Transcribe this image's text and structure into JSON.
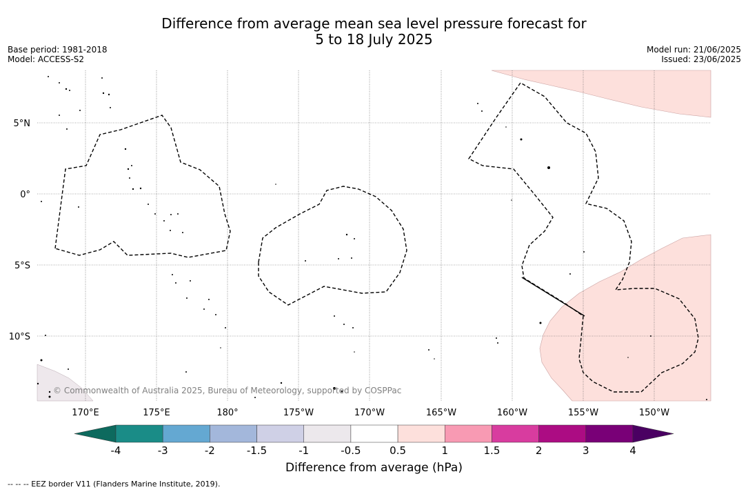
{
  "title": {
    "line1": "Difference from average mean sea level pressure forecast for",
    "line2": "5 to 18 July 2025"
  },
  "meta_left": {
    "base_period": "Base period: 1981-2018",
    "model": "Model: ACCESS-S2"
  },
  "meta_right": {
    "model_run": "Model run: 21/06/2025",
    "issued": "Issued: 23/06/2025"
  },
  "map": {
    "lon_labels": [
      "170°E",
      "175°E",
      "180°",
      "175°W",
      "170°W",
      "165°W",
      "160°W",
      "155°W",
      "150°W"
    ],
    "lat_labels": [
      "5°N",
      "0°",
      "5°S",
      "10°S"
    ],
    "copyright": "© Commonwealth of Australia 2025, Bureau of Meteorology, supported by COSPPac",
    "grid": true
  },
  "colorbar": {
    "label": "Difference from average (hPa)",
    "ticks": [
      "-4",
      "-3",
      "-2",
      "-1.5",
      "-1",
      "-0.5",
      "0.5",
      "1",
      "1.5",
      "2",
      "3",
      "4"
    ],
    "colors": [
      "#1a8c87",
      "#64a8d2",
      "#a3b7db",
      "#cfd0e6",
      "#ece8ec",
      "#ffffff",
      "#fde0dc",
      "#f89ab3",
      "#d83c9f",
      "#ac0c83",
      "#790077"
    ],
    "under_color": "#0d6a5e",
    "over_color": "#4a0062"
  },
  "footer": "--  --  -- EEZ border V11 (Flanders Marine Institute, 2019)."
}
